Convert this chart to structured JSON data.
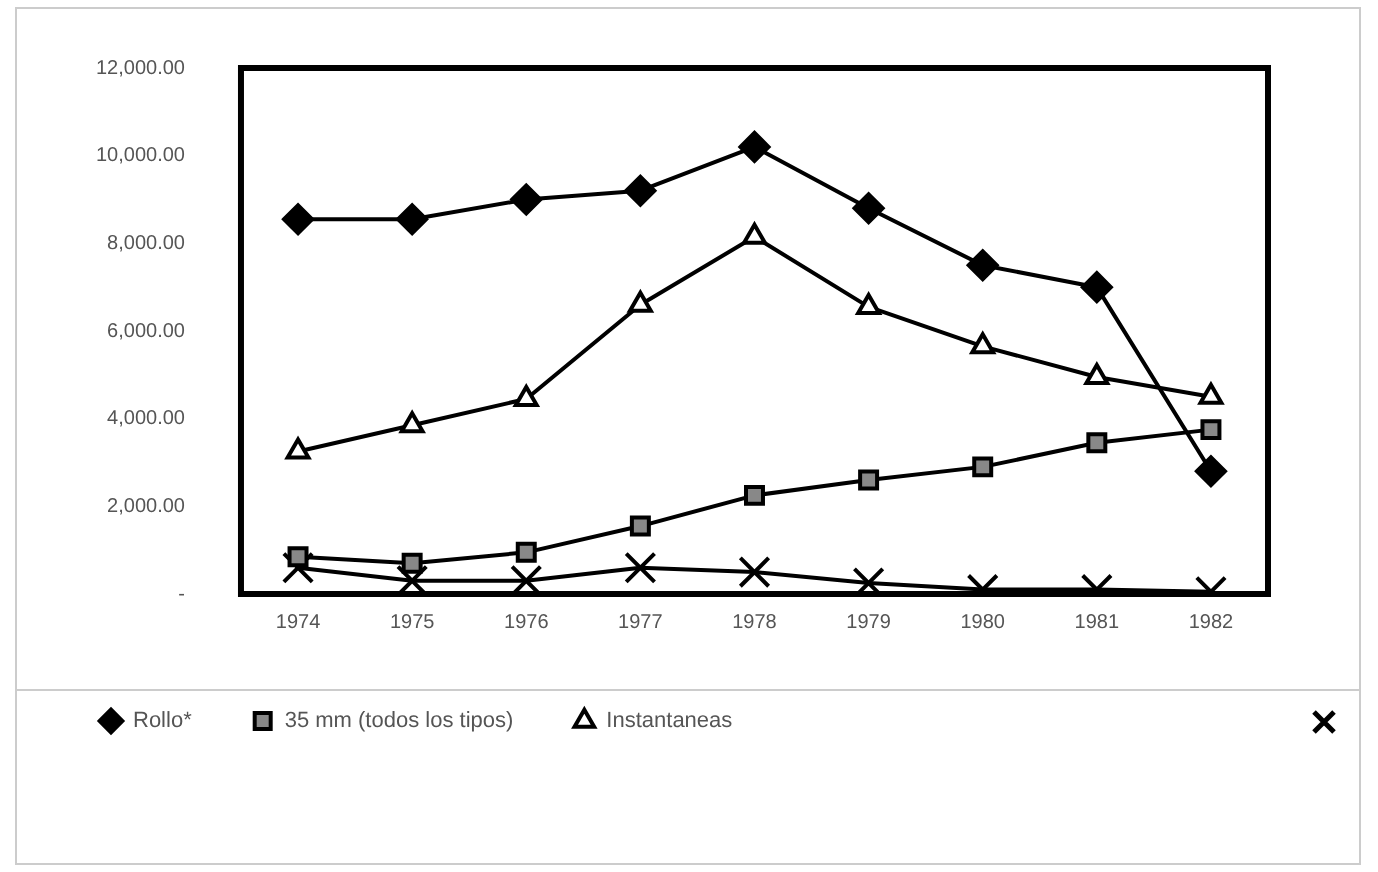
{
  "chart_data": {
    "type": "line",
    "categories": [
      "1974",
      "1975",
      "1976",
      "1977",
      "1978",
      "1979",
      "1980",
      "1981",
      "1982"
    ],
    "series": [
      {
        "name": "Rollo*",
        "color": "#000000",
        "marker": "diamond",
        "values": [
          8550,
          8550,
          9000,
          9200,
          10200,
          8800,
          7500,
          7000,
          2800
        ]
      },
      {
        "name": "35 mm (todos los tipos)",
        "color": "#000000",
        "marker": "square",
        "values": [
          850,
          700,
          950,
          1550,
          2250,
          2600,
          2900,
          3450,
          3750
        ]
      },
      {
        "name": "Instantaneas",
        "color": "#000000",
        "marker": "triangle",
        "values": [
          3250,
          3850,
          4450,
          6600,
          8150,
          6550,
          5650,
          4950,
          4500
        ]
      },
      {
        "color": "#000000",
        "marker": "cross",
        "values": [
          600,
          300,
          300,
          600,
          500,
          250,
          100,
          100,
          50
        ]
      }
    ],
    "ylim": [
      0,
      12000
    ],
    "yticks": [
      {
        "value": 0,
        "label": "-"
      },
      {
        "value": 2000,
        "label": "2,000.00"
      },
      {
        "value": 4000,
        "label": "4,000.00"
      },
      {
        "value": 6000,
        "label": "6,000.00"
      },
      {
        "value": 8000,
        "label": "8,000.00"
      },
      {
        "value": 10000,
        "label": "10,000.00"
      },
      {
        "value": 12000,
        "label": "12,000.00"
      }
    ],
    "grid": false,
    "legend": "bottom",
    "line_style": "solid"
  }
}
